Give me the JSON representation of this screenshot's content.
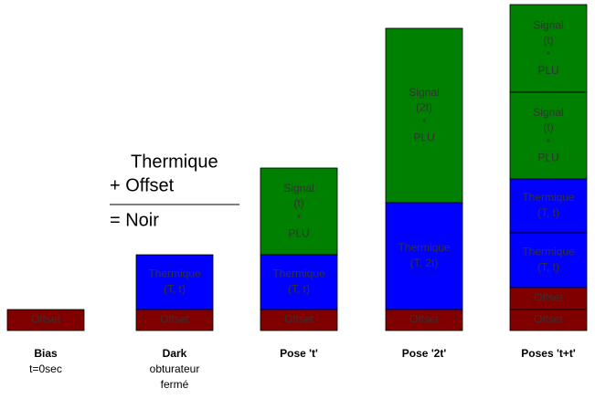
{
  "columns": [
    {
      "blocks": [
        {
          "lines": [
            "Offset"
          ]
        }
      ],
      "caption": [
        "Bias",
        "t=0sec"
      ]
    },
    {
      "blocks": [
        {
          "lines": [
            "Thermique",
            "(T, t)"
          ]
        },
        {
          "lines": [
            "Offset"
          ]
        }
      ],
      "caption": [
        "Dark",
        "obturateur",
        "fermé"
      ]
    },
    {
      "blocks": [
        {
          "lines": [
            "Signal",
            "(t)",
            "*",
            "PLU"
          ]
        },
        {
          "lines": [
            "Thermique",
            "(T, t)"
          ]
        },
        {
          "lines": [
            "Offset"
          ]
        }
      ],
      "caption": [
        "Pose 't'"
      ]
    },
    {
      "blocks": [
        {
          "lines": [
            "Signal",
            "(2t)",
            "*",
            "PLU"
          ]
        },
        {
          "lines": [
            "Thermique",
            "(T, 2t)"
          ]
        },
        {
          "lines": [
            "Offset"
          ]
        }
      ],
      "caption": [
        "Pose '2t'"
      ]
    },
    {
      "blocks": [
        {
          "lines": [
            "Signal",
            "(t)",
            "*",
            "PLU"
          ]
        },
        {
          "lines": [
            "Signal",
            "(t)",
            "*",
            "PLU"
          ]
        },
        {
          "lines": [
            "Thermique",
            "(T, t)"
          ]
        },
        {
          "lines": [
            "Thermique",
            "(T, t)"
          ]
        },
        {
          "lines": [
            "Offset"
          ]
        },
        {
          "lines": [
            "Offset"
          ]
        }
      ],
      "caption": [
        "Poses 't+t'"
      ]
    }
  ],
  "legend": {
    "lines": [
      "Thermique",
      "+ Offset",
      "= Noir"
    ]
  }
}
